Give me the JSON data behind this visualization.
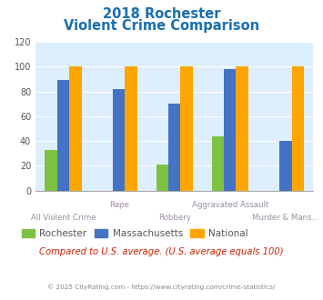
{
  "title_line1": "2018 Rochester",
  "title_line2": "Violent Crime Comparison",
  "categories": [
    "All Violent Crime",
    "Rape",
    "Robbery",
    "Aggravated Assault",
    "Murder & Mans..."
  ],
  "rochester": [
    33,
    0,
    21,
    44,
    0
  ],
  "massachusetts": [
    89,
    82,
    70,
    98,
    40
  ],
  "national": [
    100,
    100,
    100,
    100,
    100
  ],
  "rochester_color": "#7dc242",
  "massachusetts_color": "#4472c4",
  "national_color": "#ffa500",
  "ylim": [
    0,
    120
  ],
  "yticks": [
    0,
    20,
    40,
    60,
    80,
    100,
    120
  ],
  "title_color": "#1a6faf",
  "axis_label_color": "#9b8ea0",
  "legend_label_color": "#555555",
  "bg_color": "#ddeeff",
  "footer_note": "Compared to U.S. average. (U.S. average equals 100)",
  "footer_note_color": "#cc2200",
  "copyright": "© 2025 CityRating.com - https://www.cityrating.com/crime-statistics/",
  "copyright_color": "#888888",
  "bar_width": 0.22
}
